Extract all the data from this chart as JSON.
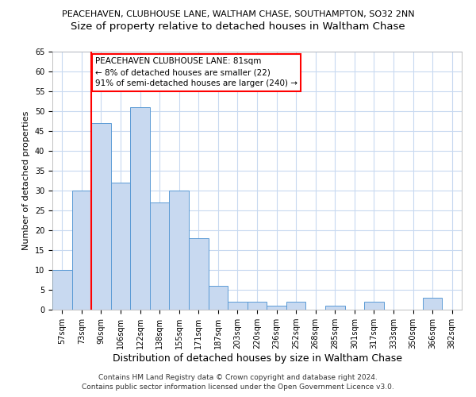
{
  "title": "PEACEHAVEN, CLUBHOUSE LANE, WALTHAM CHASE, SOUTHAMPTON, SO32 2NN",
  "subtitle": "Size of property relative to detached houses in Waltham Chase",
  "xlabel": "Distribution of detached houses by size in Waltham Chase",
  "ylabel": "Number of detached properties",
  "categories": [
    "57sqm",
    "73sqm",
    "90sqm",
    "106sqm",
    "122sqm",
    "138sqm",
    "155sqm",
    "171sqm",
    "187sqm",
    "203sqm",
    "220sqm",
    "236sqm",
    "252sqm",
    "268sqm",
    "285sqm",
    "301sqm",
    "317sqm",
    "333sqm",
    "350sqm",
    "366sqm",
    "382sqm"
  ],
  "values": [
    10,
    30,
    47,
    32,
    51,
    27,
    30,
    18,
    6,
    2,
    2,
    1,
    2,
    0,
    1,
    0,
    2,
    0,
    0,
    3,
    0
  ],
  "bar_color": "#c8d9f0",
  "bar_edge_color": "#5b9bd5",
  "vline_color": "#ff0000",
  "vline_x": 1.5,
  "annotation_text": "PEACEHAVEN CLUBHOUSE LANE: 81sqm\n← 8% of detached houses are smaller (22)\n91% of semi-detached houses are larger (240) →",
  "annotation_box_edge": "#ff0000",
  "ylim": [
    0,
    65
  ],
  "yticks": [
    0,
    5,
    10,
    15,
    20,
    25,
    30,
    35,
    40,
    45,
    50,
    55,
    60,
    65
  ],
  "footer1": "Contains HM Land Registry data © Crown copyright and database right 2024.",
  "footer2": "Contains public sector information licensed under the Open Government Licence v3.0.",
  "title_fontsize": 8,
  "subtitle_fontsize": 9.5,
  "xlabel_fontsize": 9,
  "ylabel_fontsize": 8,
  "tick_fontsize": 7,
  "annotation_fontsize": 7.5,
  "footer_fontsize": 6.5,
  "bg_color": "#ffffff",
  "grid_color": "#c8d9f0"
}
